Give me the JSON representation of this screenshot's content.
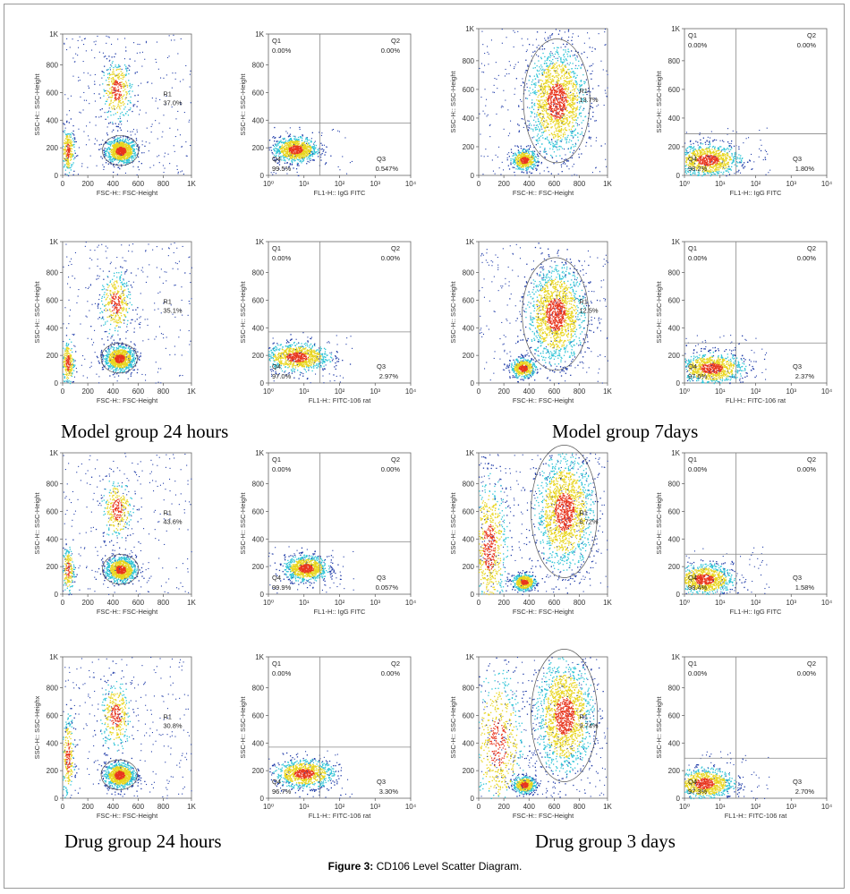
{
  "figure": {
    "caption_bold": "Figure 3:",
    "caption_text": " CD106 Level Scatter Diagram."
  },
  "group_labels": [
    "Model group 24 hours",
    "Model group 7days",
    "Drug group 24 hours",
    "Drug group 3 days"
  ],
  "colors": {
    "density_low": "#1f3ba8",
    "density_mid": "#2ec4d6",
    "density_high": "#e8d51e",
    "density_peak": "#e8361e",
    "gate_lines": "#888888"
  },
  "chart_data": [
    {
      "id": "p1",
      "type": "scatter",
      "subtype": "fsc_ssc",
      "xlabel": "FSC-H:: FSC-Height",
      "ylabel": "SSC-H:: SSC-Height",
      "xticks": [
        "0",
        "200",
        "400",
        "600",
        "800",
        "1K"
      ],
      "yticks": [
        "0",
        "200",
        "400",
        "600",
        "800",
        "1K"
      ],
      "xlim": [
        0,
        1024
      ],
      "ylim": [
        0,
        1024
      ],
      "gate": {
        "name": "R1",
        "value": "37.0%"
      },
      "clusters": [
        {
          "x": 460,
          "y": 180,
          "sx": 60,
          "sy": 45,
          "n": 900
        },
        {
          "x": 430,
          "y": 620,
          "sx": 60,
          "sy": 110,
          "n": 350
        },
        {
          "x": 40,
          "y": 180,
          "sx": 25,
          "sy": 80,
          "n": 250
        }
      ]
    },
    {
      "id": "p2",
      "type": "scatter",
      "subtype": "quadrant",
      "xlabel": "FL1-H:: IgG FITC",
      "ylabel": "SSC-H:: SSC-Height",
      "xticks": [
        "10⁰",
        "10¹",
        "10²",
        "10³",
        "10⁴"
      ],
      "yticks": [
        "0",
        "200",
        "400",
        "600",
        "800",
        "1K"
      ],
      "ylim": [
        0,
        1024
      ],
      "xlim_log": [
        0,
        4
      ],
      "quadrants": {
        "Q1": "0.00%",
        "Q2": "0.00%",
        "Q3": "0.547%",
        "Q4": "99.5%"
      },
      "clusters": [
        {
          "x": 0.75,
          "y": 190,
          "sx": 0.3,
          "sy": 45,
          "n": 900
        }
      ]
    },
    {
      "id": "p3",
      "type": "scatter",
      "subtype": "fsc_ssc",
      "xlabel": "FSC-H:: FSC-Height",
      "ylabel": "SSC-H:: SSC-Height",
      "xticks": [
        "0",
        "200",
        "400",
        "600",
        "800",
        "1K"
      ],
      "yticks": [
        "0",
        "200",
        "400",
        "600",
        "800",
        "1K"
      ],
      "xlim": [
        0,
        1024
      ],
      "ylim": [
        0,
        1024
      ],
      "gate": {
        "name": "R1",
        "value": "13.7%"
      },
      "clusters": [
        {
          "x": 620,
          "y": 520,
          "sx": 110,
          "sy": 180,
          "n": 1500
        },
        {
          "x": 360,
          "y": 110,
          "sx": 50,
          "sy": 35,
          "n": 500
        }
      ]
    },
    {
      "id": "p4",
      "type": "scatter",
      "subtype": "quadrant",
      "xlabel": "FL1-H:: IgG FITC",
      "ylabel": "SSC-H:: SSC-Height",
      "xticks": [
        "10⁰",
        "10¹",
        "10²",
        "10³",
        "10⁴"
      ],
      "yticks": [
        "0",
        "200",
        "400",
        "600",
        "800",
        "1K"
      ],
      "ylim": [
        0,
        1024
      ],
      "xlim_log": [
        0,
        4
      ],
      "quadrants": {
        "Q1": "0.00%",
        "Q2": "0.00%",
        "Q3": "1.80%",
        "Q4": "98.2%"
      },
      "clusters": [
        {
          "x": 0.65,
          "y": 110,
          "sx": 0.45,
          "sy": 55,
          "n": 900
        }
      ]
    },
    {
      "id": "p5",
      "type": "scatter",
      "subtype": "fsc_ssc",
      "xlabel": "FSC-H:: FSC-Height",
      "ylabel": "SSC-H:: SSC-Height",
      "xticks": [
        "0",
        "200",
        "400",
        "600",
        "800",
        "1K"
      ],
      "yticks": [
        "0",
        "200",
        "400",
        "600",
        "800",
        "1K"
      ],
      "xlim": [
        0,
        1024
      ],
      "ylim": [
        0,
        1024
      ],
      "gate": {
        "name": "R1",
        "value": "35.1%"
      },
      "clusters": [
        {
          "x": 450,
          "y": 180,
          "sx": 60,
          "sy": 45,
          "n": 900
        },
        {
          "x": 420,
          "y": 580,
          "sx": 60,
          "sy": 110,
          "n": 350
        },
        {
          "x": 40,
          "y": 150,
          "sx": 25,
          "sy": 80,
          "n": 250
        }
      ]
    },
    {
      "id": "p6",
      "type": "scatter",
      "subtype": "quadrant",
      "xlabel": "FL1-H:: FITC-106 rat",
      "ylabel": "SSC-H:: SSC-Height",
      "xticks": [
        "10⁰",
        "10¹",
        "10²",
        "10³",
        "10⁴"
      ],
      "yticks": [
        "0",
        "200",
        "400",
        "600",
        "800",
        "1K"
      ],
      "ylim": [
        0,
        1024
      ],
      "xlim_log": [
        0,
        4
      ],
      "quadrants": {
        "Q1": "0.00%",
        "Q2": "0.00%",
        "Q3": "2.97%",
        "Q4": "97.0%"
      },
      "clusters": [
        {
          "x": 0.8,
          "y": 190,
          "sx": 0.45,
          "sy": 50,
          "n": 900
        }
      ]
    },
    {
      "id": "p7",
      "type": "scatter",
      "subtype": "fsc_ssc",
      "xlabel": "FSC-H:: FSC-Height",
      "ylabel": "SSC-H:: SSC-Height",
      "xticks": [
        "0",
        "200",
        "400",
        "600",
        "800",
        "1K"
      ],
      "yticks": [
        "0",
        "200",
        "400",
        "600",
        "800",
        "1K"
      ],
      "xlim": [
        0,
        1024
      ],
      "ylim": [
        0,
        1024
      ],
      "gate": {
        "name": "R1",
        "value": "12.5%"
      },
      "clusters": [
        {
          "x": 610,
          "y": 500,
          "sx": 110,
          "sy": 170,
          "n": 1500
        },
        {
          "x": 350,
          "y": 110,
          "sx": 50,
          "sy": 35,
          "n": 500
        }
      ]
    },
    {
      "id": "p8",
      "type": "scatter",
      "subtype": "quadrant",
      "xlabel": "FLl-H:: FITC-106 rat",
      "ylabel": "SSC-H:: SSC-Height",
      "xticks": [
        "10⁰",
        "10¹",
        "10²",
        "10³",
        "10⁴"
      ],
      "yticks": [
        "0",
        "200",
        "400",
        "600",
        "800",
        "1K"
      ],
      "ylim": [
        0,
        1024
      ],
      "xlim_log": [
        0,
        4
      ],
      "quadrants": {
        "Q1": "0.00%",
        "Q2": "0.00%",
        "Q3": "2.37%",
        "Q4": "97.6%"
      },
      "clusters": [
        {
          "x": 0.75,
          "y": 110,
          "sx": 0.45,
          "sy": 55,
          "n": 900
        }
      ]
    },
    {
      "id": "p9",
      "type": "scatter",
      "subtype": "fsc_ssc",
      "xlabel": "FSC-H:: FSC-Height",
      "ylabel": "SSC-H:: SSC-Height",
      "xticks": [
        "0",
        "200",
        "400",
        "600",
        "800",
        "1K"
      ],
      "yticks": [
        "0",
        "200",
        "400",
        "600",
        "800",
        "1K"
      ],
      "xlim": [
        0,
        1024
      ],
      "ylim": [
        0,
        1024
      ],
      "gate": {
        "name": "R1",
        "value": "43.6%"
      },
      "clusters": [
        {
          "x": 460,
          "y": 180,
          "sx": 60,
          "sy": 45,
          "n": 900
        },
        {
          "x": 430,
          "y": 620,
          "sx": 60,
          "sy": 110,
          "n": 300
        },
        {
          "x": 40,
          "y": 180,
          "sx": 25,
          "sy": 80,
          "n": 200
        }
      ]
    },
    {
      "id": "p10",
      "type": "scatter",
      "subtype": "quadrant",
      "xlabel": "FL1-H:: IgG FITC",
      "ylabel": "SSC-H:: SSC-Height",
      "xticks": [
        "10⁰",
        "10¹",
        "10²",
        "10³",
        "10⁴"
      ],
      "yticks": [
        "0",
        "200",
        "400",
        "600",
        "800",
        "1K"
      ],
      "ylim": [
        0,
        1024
      ],
      "xlim_log": [
        0,
        4
      ],
      "quadrants": {
        "Q1": "0.00%",
        "Q2": "0.00%",
        "Q3": "0.057%",
        "Q4": "99.9%"
      },
      "clusters": [
        {
          "x": 1.05,
          "y": 190,
          "sx": 0.3,
          "sy": 45,
          "n": 900
        }
      ]
    },
    {
      "id": "p11",
      "type": "scatter",
      "subtype": "fsc_ssc",
      "xlabel": "FSC-H:: FSC-Height",
      "ylabel": "SSC-H:: SSC-Height",
      "xticks": [
        "0",
        "200",
        "400",
        "600",
        "800",
        "1K"
      ],
      "yticks": [
        "0",
        "200",
        "400",
        "600",
        "800",
        "1K"
      ],
      "xlim": [
        0,
        1024
      ],
      "ylim": [
        0,
        1024
      ],
      "gate": {
        "name": "R1",
        "value": "6.72%"
      },
      "clusters": [
        {
          "x": 680,
          "y": 600,
          "sx": 110,
          "sy": 200,
          "n": 1500
        },
        {
          "x": 360,
          "y": 90,
          "sx": 45,
          "sy": 30,
          "n": 500
        },
        {
          "x": 80,
          "y": 350,
          "sx": 70,
          "sy": 250,
          "n": 700
        }
      ]
    },
    {
      "id": "p12",
      "type": "scatter",
      "subtype": "quadrant",
      "xlabel": "FL1-H:: IgG FITC",
      "ylabel": "SSC-H:: SSC-Height",
      "xticks": [
        "10⁰",
        "10¹",
        "10²",
        "10³",
        "10⁴"
      ],
      "yticks": [
        "0",
        "200",
        "400",
        "600",
        "800",
        "1K"
      ],
      "ylim": [
        0,
        1024
      ],
      "xlim_log": [
        0,
        4
      ],
      "quadrants": {
        "Q1": "0.00%",
        "Q2": "0.00%",
        "Q3": "1.58%",
        "Q4": "98.4%"
      },
      "clusters": [
        {
          "x": 0.55,
          "y": 110,
          "sx": 0.4,
          "sy": 55,
          "n": 900
        }
      ]
    },
    {
      "id": "p13",
      "type": "scatter",
      "subtype": "fsc_ssc",
      "xlabel": "FSC-H:: FSC-Height",
      "ylabel": "SSC-H:: SSC-Heighx",
      "xticks": [
        "0",
        "200",
        "400",
        "600",
        "800",
        "1K"
      ],
      "yticks": [
        "0",
        "200",
        "400",
        "600",
        "800",
        "1K"
      ],
      "xlim": [
        0,
        1024
      ],
      "ylim": [
        0,
        1024
      ],
      "gate": {
        "name": "R1",
        "value": "30.8%"
      },
      "clusters": [
        {
          "x": 450,
          "y": 170,
          "sx": 60,
          "sy": 45,
          "n": 900
        },
        {
          "x": 420,
          "y": 600,
          "sx": 60,
          "sy": 120,
          "n": 350
        },
        {
          "x": 40,
          "y": 300,
          "sx": 25,
          "sy": 150,
          "n": 250
        }
      ]
    },
    {
      "id": "p14",
      "type": "scatter",
      "subtype": "quadrant",
      "xlabel": "FL1-H:: FITC-106 rat",
      "ylabel": "SSC-H:: SSC-Height",
      "xticks": [
        "10⁰",
        "10¹",
        "10²",
        "10³",
        "10⁴"
      ],
      "yticks": [
        "0",
        "200",
        "400",
        "600",
        "800",
        "1K"
      ],
      "ylim": [
        0,
        1024
      ],
      "xlim_log": [
        0,
        4
      ],
      "quadrants": {
        "Q1": "0.00%",
        "Q2": "0.00%",
        "Q3": "3.30%",
        "Q4": "96.7%"
      },
      "clusters": [
        {
          "x": 1.0,
          "y": 180,
          "sx": 0.4,
          "sy": 50,
          "n": 900
        }
      ]
    },
    {
      "id": "p15",
      "type": "scatter",
      "subtype": "fsc_ssc",
      "xlabel": "FSC-H:: FSC-Height",
      "ylabel": "SSC-H:: SSC-Height",
      "xticks": [
        "0",
        "200",
        "400",
        "600",
        "800",
        "1K"
      ],
      "yticks": [
        "0",
        "200",
        "400",
        "600",
        "800",
        "1K"
      ],
      "xlim": [
        0,
        1024
      ],
      "ylim": [
        0,
        1024
      ],
      "gate": {
        "name": "R1",
        "value": "9.74%"
      },
      "clusters": [
        {
          "x": 680,
          "y": 600,
          "sx": 110,
          "sy": 200,
          "n": 1500
        },
        {
          "x": 360,
          "y": 100,
          "sx": 45,
          "sy": 30,
          "n": 500
        },
        {
          "x": 150,
          "y": 400,
          "sx": 100,
          "sy": 250,
          "n": 600
        }
      ]
    },
    {
      "id": "p16",
      "type": "scatter",
      "subtype": "quadrant",
      "xlabel": "FL1-H:: FITC-106 rat",
      "ylabel": "SSC-H:: SSC-Height",
      "xticks": [
        "10⁰",
        "10¹",
        "10²",
        "10³",
        "10⁴"
      ],
      "yticks": [
        "0",
        "200",
        "400",
        "600",
        "800",
        "1K"
      ],
      "ylim": [
        0,
        1024
      ],
      "xlim_log": [
        0,
        4
      ],
      "quadrants": {
        "Q1": "0.00%",
        "Q2": "0.00%",
        "Q3": "2.70%",
        "Q4": "97.3%"
      },
      "clusters": [
        {
          "x": 0.55,
          "y": 110,
          "sx": 0.4,
          "sy": 55,
          "n": 900
        }
      ]
    }
  ]
}
